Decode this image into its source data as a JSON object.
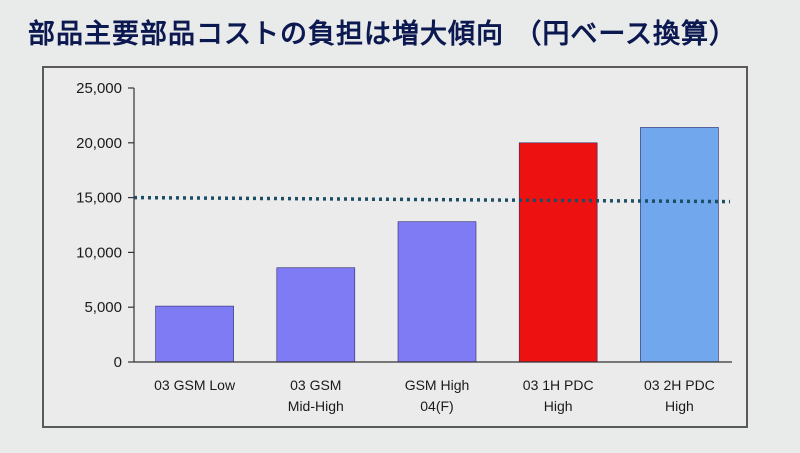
{
  "slide": {
    "title": "部品主要部品コストの負担は増大傾向 （円ベース換算）"
  },
  "chart_data": {
    "type": "bar",
    "title": "部品主要部品コストの負担は増大傾向 （円ベース換算）",
    "xlabel": "",
    "ylabel": "",
    "categories": [
      [
        "03 GSM Low"
      ],
      [
        "03 GSM",
        "Mid-High"
      ],
      [
        "GSM High",
        "04(F)"
      ],
      [
        "03 1H PDC",
        "High"
      ],
      [
        "03 2H PDC",
        "High"
      ]
    ],
    "values": [
      5100,
      8600,
      12800,
      20000,
      21400
    ],
    "bar_colors": [
      "#7f7bf4",
      "#7f7bf4",
      "#7f7bf4",
      "#ee1111",
      "#71a7ec"
    ],
    "ylim": [
      0,
      25000
    ],
    "yticks": [
      0,
      5000,
      10000,
      15000,
      20000,
      25000
    ],
    "ytick_labels": [
      "0",
      "5,000",
      "10,000",
      "15,000",
      "20,000",
      "25,000"
    ],
    "reference_line": {
      "value": 15000,
      "style": "dotted",
      "color": "#1e4e66"
    },
    "grid": false,
    "legend": "none"
  }
}
